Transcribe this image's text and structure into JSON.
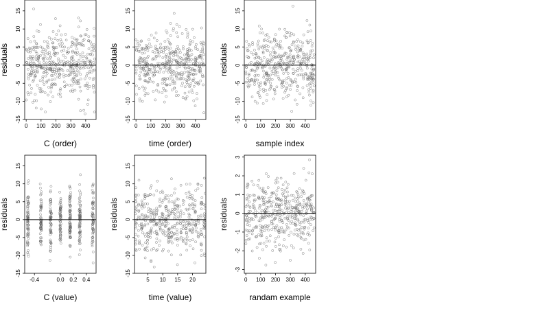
{
  "chart_data": [
    {
      "type": "scatter",
      "xlabel": "C (order)",
      "ylabel": "residuals",
      "xlim": [
        -10,
        470
      ],
      "ylim": [
        -15,
        18
      ],
      "xticks": [
        0,
        100,
        200,
        300,
        400
      ],
      "yticks": [
        -15,
        -10,
        -5,
        0,
        5,
        10,
        15
      ],
      "hline": 0,
      "pattern": "uniform",
      "n_points": 450,
      "grid": false
    },
    {
      "type": "scatter",
      "xlabel": "time (order)",
      "ylabel": "residuals",
      "xlim": [
        -10,
        470
      ],
      "ylim": [
        -15,
        18
      ],
      "xticks": [
        0,
        100,
        200,
        300,
        400
      ],
      "yticks": [
        -15,
        -10,
        -5,
        0,
        5,
        10,
        15
      ],
      "hline": 0,
      "pattern": "uniform",
      "n_points": 450,
      "grid": false
    },
    {
      "type": "scatter",
      "xlabel": "sample index",
      "ylabel": "residuals",
      "xlim": [
        -10,
        470
      ],
      "ylim": [
        -15,
        18
      ],
      "xticks": [
        0,
        100,
        200,
        300,
        400
      ],
      "yticks": [
        -15,
        -10,
        -5,
        0,
        5,
        10,
        15
      ],
      "hline": 0,
      "pattern": "uniform",
      "n_points": 450,
      "grid": false
    },
    {
      "type": "scatter",
      "xlabel": "C (value)",
      "ylabel": "residuals",
      "xlim": [
        -0.55,
        0.55
      ],
      "ylim": [
        -15,
        18
      ],
      "xticks": [
        -0.4,
        0.0,
        0.2,
        0.4
      ],
      "xticklabels": [
        "-0.4",
        "0.0",
        "0.2",
        "0.4"
      ],
      "yticks": [
        -15,
        -10,
        -5,
        0,
        5,
        10,
        15
      ],
      "hline": 0,
      "pattern": "columns",
      "x_columns": [
        -0.5,
        -0.3,
        -0.15,
        0.0,
        0.15,
        0.3,
        0.5
      ],
      "n_points": 450,
      "grid": false
    },
    {
      "type": "scatter",
      "xlabel": "time (value)",
      "ylabel": "residuals",
      "xlim": [
        0.5,
        24.5
      ],
      "ylim": [
        -15,
        18
      ],
      "xticks": [
        5,
        10,
        15,
        20
      ],
      "yticks": [
        -15,
        -10,
        -5,
        0,
        5,
        10,
        15
      ],
      "hline": 0,
      "pattern": "columns",
      "x_columns": [
        1,
        2,
        3,
        4,
        5,
        6,
        7,
        8,
        9,
        10,
        11,
        12,
        13,
        14,
        15,
        16,
        17,
        18,
        19,
        20,
        21,
        22,
        23,
        24
      ],
      "n_points": 450,
      "grid": false
    },
    {
      "type": "scatter",
      "xlabel": "randam example",
      "ylabel": "residuals",
      "xlim": [
        -10,
        470
      ],
      "ylim": [
        -3.2,
        3.1
      ],
      "xticks": [
        0,
        100,
        200,
        300,
        400
      ],
      "yticks": [
        -3,
        -2,
        -1,
        0,
        1,
        2,
        3
      ],
      "hline": 0,
      "pattern": "uniform",
      "n_points": 450,
      "grid": false
    }
  ],
  "style": {
    "point_color": "#555555",
    "line_color": "#000000",
    "background": "#ffffff"
  }
}
